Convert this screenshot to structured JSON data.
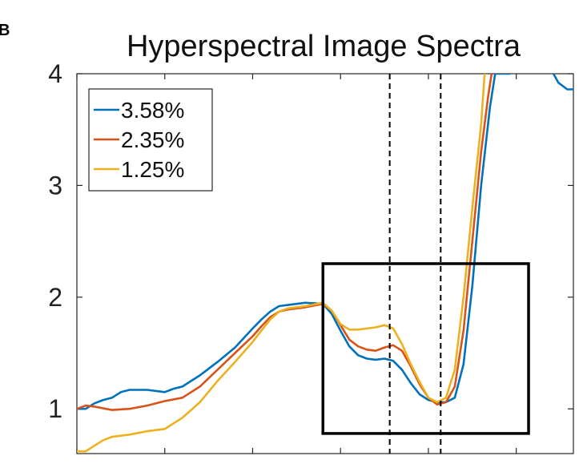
{
  "panel_label": "B",
  "chart_data": {
    "type": "line",
    "title": "Hyperspectral Image Spectra",
    "xlabel": "",
    "ylabel": "",
    "xlim": [
      0,
      28.25
    ],
    "ylim": [
      0.6,
      4.0
    ],
    "yticks": [
      1,
      2,
      3,
      4
    ],
    "ytick_labels": [
      "1",
      "2",
      "3",
      "4"
    ],
    "xticks": [
      0,
      5,
      10,
      15,
      20,
      25
    ],
    "grid": false,
    "legend_position": "top-left",
    "series": [
      {
        "name": "3.58%",
        "color": "#0072BD",
        "points": [
          [
            0,
            1.0
          ],
          [
            0.5,
            1.0
          ],
          [
            1,
            1.05
          ],
          [
            1.5,
            1.08
          ],
          [
            2,
            1.1
          ],
          [
            2.5,
            1.15
          ],
          [
            3,
            1.17
          ],
          [
            4,
            1.17
          ],
          [
            5,
            1.15
          ],
          [
            5.5,
            1.18
          ],
          [
            6,
            1.2
          ],
          [
            7,
            1.3
          ],
          [
            8,
            1.42
          ],
          [
            9,
            1.55
          ],
          [
            10,
            1.72
          ],
          [
            10.5,
            1.8
          ],
          [
            11,
            1.87
          ],
          [
            11.5,
            1.92
          ],
          [
            12,
            1.93
          ],
          [
            12.5,
            1.94
          ],
          [
            13,
            1.95
          ],
          [
            14,
            1.94
          ],
          [
            14.5,
            1.85
          ],
          [
            15,
            1.7
          ],
          [
            15.5,
            1.56
          ],
          [
            16,
            1.48
          ],
          [
            16.5,
            1.45
          ],
          [
            17,
            1.44
          ],
          [
            17.5,
            1.45
          ],
          [
            18,
            1.43
          ],
          [
            18.5,
            1.35
          ],
          [
            19,
            1.23
          ],
          [
            19.5,
            1.13
          ],
          [
            20,
            1.08
          ],
          [
            20.5,
            1.06
          ],
          [
            21,
            1.06
          ],
          [
            21.5,
            1.1
          ],
          [
            22,
            1.4
          ],
          [
            22.5,
            2.1
          ],
          [
            23,
            3.0
          ],
          [
            23.5,
            3.7
          ],
          [
            23.8,
            4.0
          ],
          [
            24.6,
            4.0
          ],
          [
            25.8,
            4.08
          ],
          [
            26.4,
            4.1
          ],
          [
            26.9,
            4.06
          ],
          [
            27.4,
            3.92
          ],
          [
            27.9,
            3.86
          ],
          [
            28.25,
            3.86
          ]
        ]
      },
      {
        "name": "2.35%",
        "color": "#D95319",
        "points": [
          [
            0,
            1.0
          ],
          [
            0.5,
            1.03
          ],
          [
            1,
            1.02
          ],
          [
            2,
            0.99
          ],
          [
            3,
            1.0
          ],
          [
            4,
            1.03
          ],
          [
            5,
            1.07
          ],
          [
            6,
            1.1
          ],
          [
            7,
            1.2
          ],
          [
            8,
            1.35
          ],
          [
            9,
            1.5
          ],
          [
            10,
            1.65
          ],
          [
            10.5,
            1.74
          ],
          [
            11,
            1.82
          ],
          [
            11.5,
            1.87
          ],
          [
            12,
            1.89
          ],
          [
            13,
            1.91
          ],
          [
            14,
            1.94
          ],
          [
            14.5,
            1.88
          ],
          [
            15,
            1.75
          ],
          [
            15.5,
            1.62
          ],
          [
            16,
            1.56
          ],
          [
            16.5,
            1.53
          ],
          [
            17,
            1.52
          ],
          [
            17.5,
            1.55
          ],
          [
            18,
            1.57
          ],
          [
            18.5,
            1.52
          ],
          [
            19,
            1.38
          ],
          [
            19.5,
            1.22
          ],
          [
            20,
            1.1
          ],
          [
            20.5,
            1.04
          ],
          [
            21,
            1.06
          ],
          [
            21.5,
            1.2
          ],
          [
            22,
            1.7
          ],
          [
            22.5,
            2.5
          ],
          [
            23,
            3.3
          ],
          [
            23.4,
            3.8
          ],
          [
            23.6,
            4.0
          ]
        ]
      },
      {
        "name": "1.25%",
        "color": "#EDB120",
        "points": [
          [
            0,
            0.62
          ],
          [
            0.5,
            0.62
          ],
          [
            1,
            0.67
          ],
          [
            1.5,
            0.72
          ],
          [
            2,
            0.75
          ],
          [
            3,
            0.77
          ],
          [
            4,
            0.8
          ],
          [
            5,
            0.82
          ],
          [
            6,
            0.92
          ],
          [
            7,
            1.06
          ],
          [
            8,
            1.25
          ],
          [
            9,
            1.42
          ],
          [
            10,
            1.6
          ],
          [
            10.5,
            1.7
          ],
          [
            11,
            1.8
          ],
          [
            11.5,
            1.87
          ],
          [
            12,
            1.9
          ],
          [
            13,
            1.92
          ],
          [
            14,
            1.95
          ],
          [
            14.5,
            1.88
          ],
          [
            15,
            1.76
          ],
          [
            15.5,
            1.71
          ],
          [
            16,
            1.71
          ],
          [
            17,
            1.73
          ],
          [
            17.5,
            1.75
          ],
          [
            18,
            1.72
          ],
          [
            18.5,
            1.58
          ],
          [
            19,
            1.4
          ],
          [
            19.5,
            1.24
          ],
          [
            20,
            1.1
          ],
          [
            20.5,
            1.06
          ],
          [
            21,
            1.1
          ],
          [
            21.5,
            1.35
          ],
          [
            22,
            2.0
          ],
          [
            22.5,
            2.8
          ],
          [
            23,
            3.55
          ],
          [
            23.2,
            4.0
          ]
        ]
      }
    ],
    "vlines": [
      {
        "x": 17.8,
        "style": "dashed"
      },
      {
        "x": 20.7,
        "style": "dashed"
      }
    ],
    "annotation_box": {
      "x0": 14.0,
      "x1": 25.7,
      "y0": 0.78,
      "y1": 2.3
    }
  }
}
